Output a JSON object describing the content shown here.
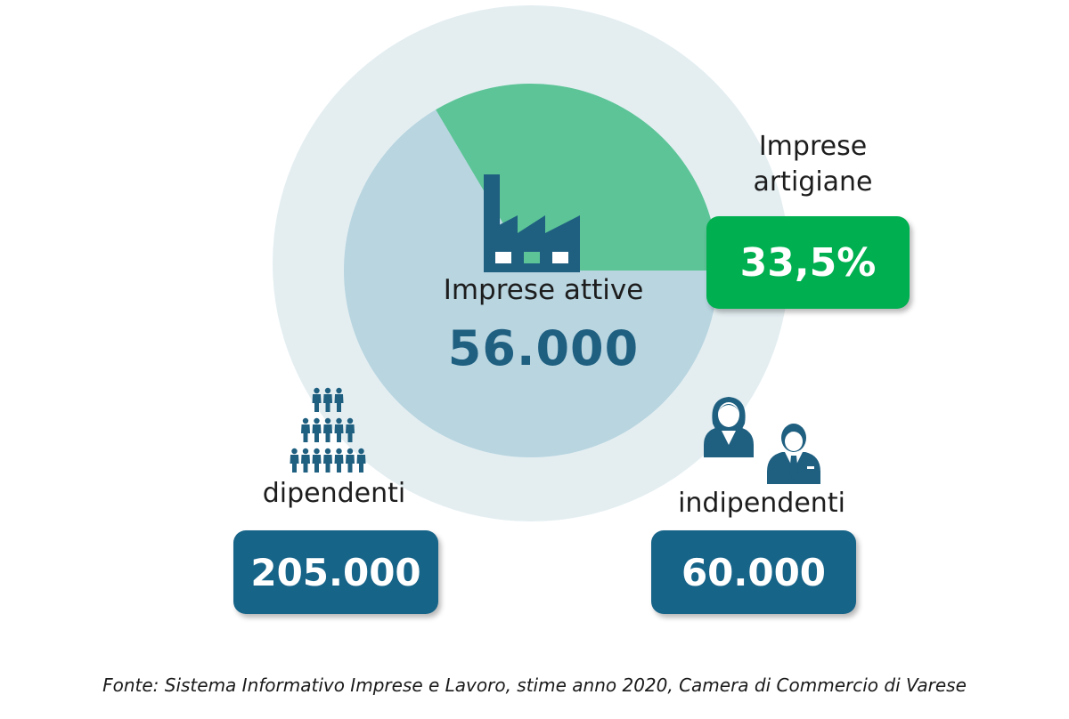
{
  "chart_data": {
    "type": "pie",
    "center": {
      "label": "Imprese attive",
      "value": "56.000"
    },
    "slices": [
      {
        "name": "Imprese artigiane",
        "value": 33.5
      },
      {
        "name": "",
        "value": 66.5
      }
    ],
    "artigiane": {
      "label": "Imprese artigiane",
      "value_label": "33,5%"
    },
    "dipendenti": {
      "label": "dipendenti",
      "value": "205.000"
    },
    "indipendenti": {
      "label": "indipendenti",
      "value": "60.000"
    },
    "source": "Fonte: Sistema Informativo Imprese e Lavoro, stime anno 2020, Camera di Commercio di Varese"
  },
  "colors": {
    "outer_ring": "#e4eef1",
    "pie_rest": "#b8d5e0",
    "pie_artigiane": "#5cc497",
    "badge_green": "#00b050",
    "badge_blue": "#176489",
    "icon": "#1f5f80"
  },
  "icons": [
    "factory-icon",
    "people-pyramid-icon",
    "businesswoman-icon",
    "businessman-icon"
  ]
}
